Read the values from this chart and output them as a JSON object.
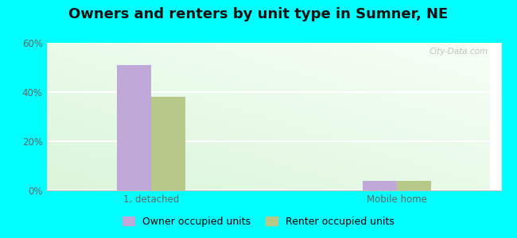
{
  "title": "Owners and renters by unit type in Sumner, NE",
  "categories": [
    "1, detached",
    "Mobile home"
  ],
  "owner_values": [
    51,
    4
  ],
  "renter_values": [
    38,
    4
  ],
  "owner_color": "#c0a8d8",
  "renter_color": "#b8c888",
  "owner_label": "Owner occupied units",
  "renter_label": "Renter occupied units",
  "ylim": [
    0,
    60
  ],
  "yticks": [
    0,
    20,
    40,
    60
  ],
  "ytick_labels": [
    "0%",
    "20%",
    "40%",
    "60%"
  ],
  "bar_width": 0.28,
  "outer_bg": "#00ffff",
  "watermark": "City-Data.com",
  "title_fontsize": 13,
  "tick_fontsize": 8.5,
  "legend_fontsize": 9
}
